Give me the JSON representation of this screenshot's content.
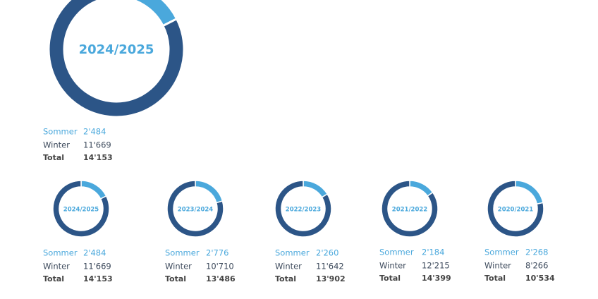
{
  "chart_data": [
    {
      "type": "donut",
      "title": "2024/2025",
      "categories": [
        "Sommer",
        "Winter"
      ],
      "values": [
        2484,
        11669
      ],
      "value_labels": [
        "2'484",
        "11'669"
      ],
      "colors": [
        "#4aa8dc",
        "#2c5587"
      ],
      "total_name": "Total",
      "total": {
        "value": 14153,
        "label": "14'153"
      }
    },
    {
      "type": "donut",
      "title": "2024/2025",
      "categories": [
        "Sommer",
        "Winter"
      ],
      "values": [
        2484,
        11669
      ],
      "value_labels": [
        "2'484",
        "11'669"
      ],
      "colors": [
        "#4aa8dc",
        "#2c5587"
      ],
      "total_name": "Total",
      "total": {
        "value": 14153,
        "label": "14'153"
      }
    },
    {
      "type": "donut",
      "title": "2023/2024",
      "categories": [
        "Sommer",
        "Winter"
      ],
      "values": [
        2776,
        10710
      ],
      "value_labels": [
        "2'776",
        "10'710"
      ],
      "colors": [
        "#4aa8dc",
        "#2c5587"
      ],
      "total_name": "Total",
      "total": {
        "value": 13486,
        "label": "13'486"
      }
    },
    {
      "type": "donut",
      "title": "2022/2023",
      "categories": [
        "Sommer",
        "Winter"
      ],
      "values": [
        2260,
        11642
      ],
      "value_labels": [
        "2'260",
        "11'642"
      ],
      "colors": [
        "#4aa8dc",
        "#2c5587"
      ],
      "total_name": "Total",
      "total": {
        "value": 13902,
        "label": "13'902"
      }
    },
    {
      "type": "donut",
      "title": "2021/2022",
      "categories": [
        "Sommer",
        "Winter"
      ],
      "values": [
        2184,
        12215
      ],
      "value_labels": [
        "2'184",
        "12'215"
      ],
      "colors": [
        "#4aa8dc",
        "#2c5587"
      ],
      "total_name": "Total",
      "total": {
        "value": 14399,
        "label": "14'399"
      }
    },
    {
      "type": "donut",
      "title": "2020/2021",
      "categories": [
        "Sommer",
        "Winter"
      ],
      "values": [
        2268,
        8266
      ],
      "value_labels": [
        "2'268",
        "8'266"
      ],
      "colors": [
        "#4aa8dc",
        "#2c5587"
      ],
      "total_name": "Total",
      "total": {
        "value": 10534,
        "label": "10'534"
      }
    }
  ]
}
